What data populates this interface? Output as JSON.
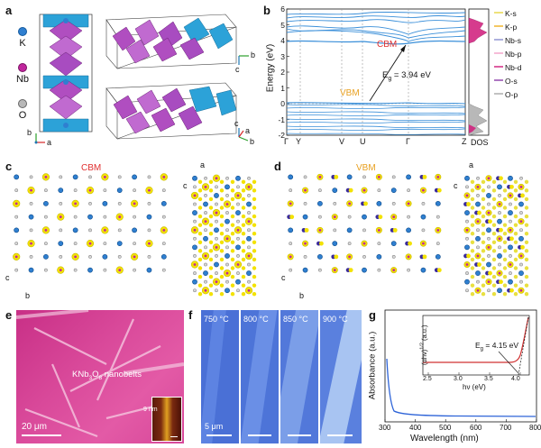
{
  "panels": {
    "a": {
      "label": "a",
      "atoms": [
        {
          "symbol": "K",
          "color": "#2f7fd0"
        },
        {
          "symbol": "Nb",
          "color": "#c0269d"
        },
        {
          "symbol": "O",
          "color": "#9a9a9a"
        }
      ],
      "axes": {
        "a": "a",
        "b": "b",
        "c": "c"
      }
    },
    "b": {
      "label": "b",
      "ylabel": "Energy (eV)",
      "dos_label": "DOS",
      "k_path": [
        "Γ",
        "Y",
        "V",
        "U",
        "Γ",
        "Z"
      ],
      "y_ticks": [
        "6",
        "5",
        "4",
        "3",
        "2",
        "1",
        "0",
        "-1",
        "-2"
      ],
      "cbm_label": "CBM",
      "vbm_label": "VBM",
      "gap_label": "E",
      "gap_sub": "g",
      "gap_value": " = 3.94 eV",
      "legend": [
        {
          "name": "K-s",
          "color": "#e6d640"
        },
        {
          "name": "K-p",
          "color": "#f0b020"
        },
        {
          "name": "Nb-s",
          "color": "#8a8fd0"
        },
        {
          "name": "Nb-p",
          "color": "#f2a0c8"
        },
        {
          "name": "Nb-d",
          "color": "#d01a7a"
        },
        {
          "name": "O-s",
          "color": "#8b3aa8"
        },
        {
          "name": "O-p",
          "color": "#a8a8a8"
        }
      ]
    },
    "c": {
      "label": "c",
      "title": "CBM",
      "axes": {
        "a": "a",
        "b": "b",
        "c": "c"
      }
    },
    "d": {
      "label": "d",
      "title": "VBM",
      "axes": {
        "a": "a",
        "b": "b",
        "c": "c"
      }
    },
    "e": {
      "label": "e",
      "caption_pre": "KNb",
      "caption_sub1": "3",
      "caption_mid": "O",
      "caption_sub2": "8",
      "caption_post": " nanobelts",
      "scale": "20 μm",
      "inset_scale": "9 nm"
    },
    "f": {
      "label": "f",
      "temps": [
        "750 °C",
        "800 °C",
        "850 °C",
        "900 °C"
      ],
      "scale": "5 μm"
    },
    "g": {
      "label": "g",
      "xlabel": "Wavelength (nm)",
      "ylabel": "Absorbance (a.u.)",
      "x_ticks": [
        "300",
        "400",
        "500",
        "600",
        "700",
        "800"
      ],
      "inset": {
        "xlabel": "hν (eV)",
        "ylabel": "(αhν)",
        "ylabel_sup": "1/2",
        "ylabel_post": " (a.u.)",
        "x_ticks": [
          "2.5",
          "3.0",
          "3.5",
          "4.0"
        ],
        "gap_label": "E",
        "gap_sub": "g",
        "gap_value": " = 4.15 eV"
      }
    }
  },
  "colors": {
    "band": "#3a8fd9",
    "cbm": "#e03030",
    "vbm": "#e8a020",
    "k_atom": "#2f7fd0",
    "nb_atom": "#c0269d",
    "o_atom": "#9a9a9a",
    "iso": "#f3e200",
    "sem_pink": "#d8409a",
    "optical_blue": "#4f6fd8",
    "abs_curve": "#2e64d8",
    "tauc": "#d03030"
  }
}
